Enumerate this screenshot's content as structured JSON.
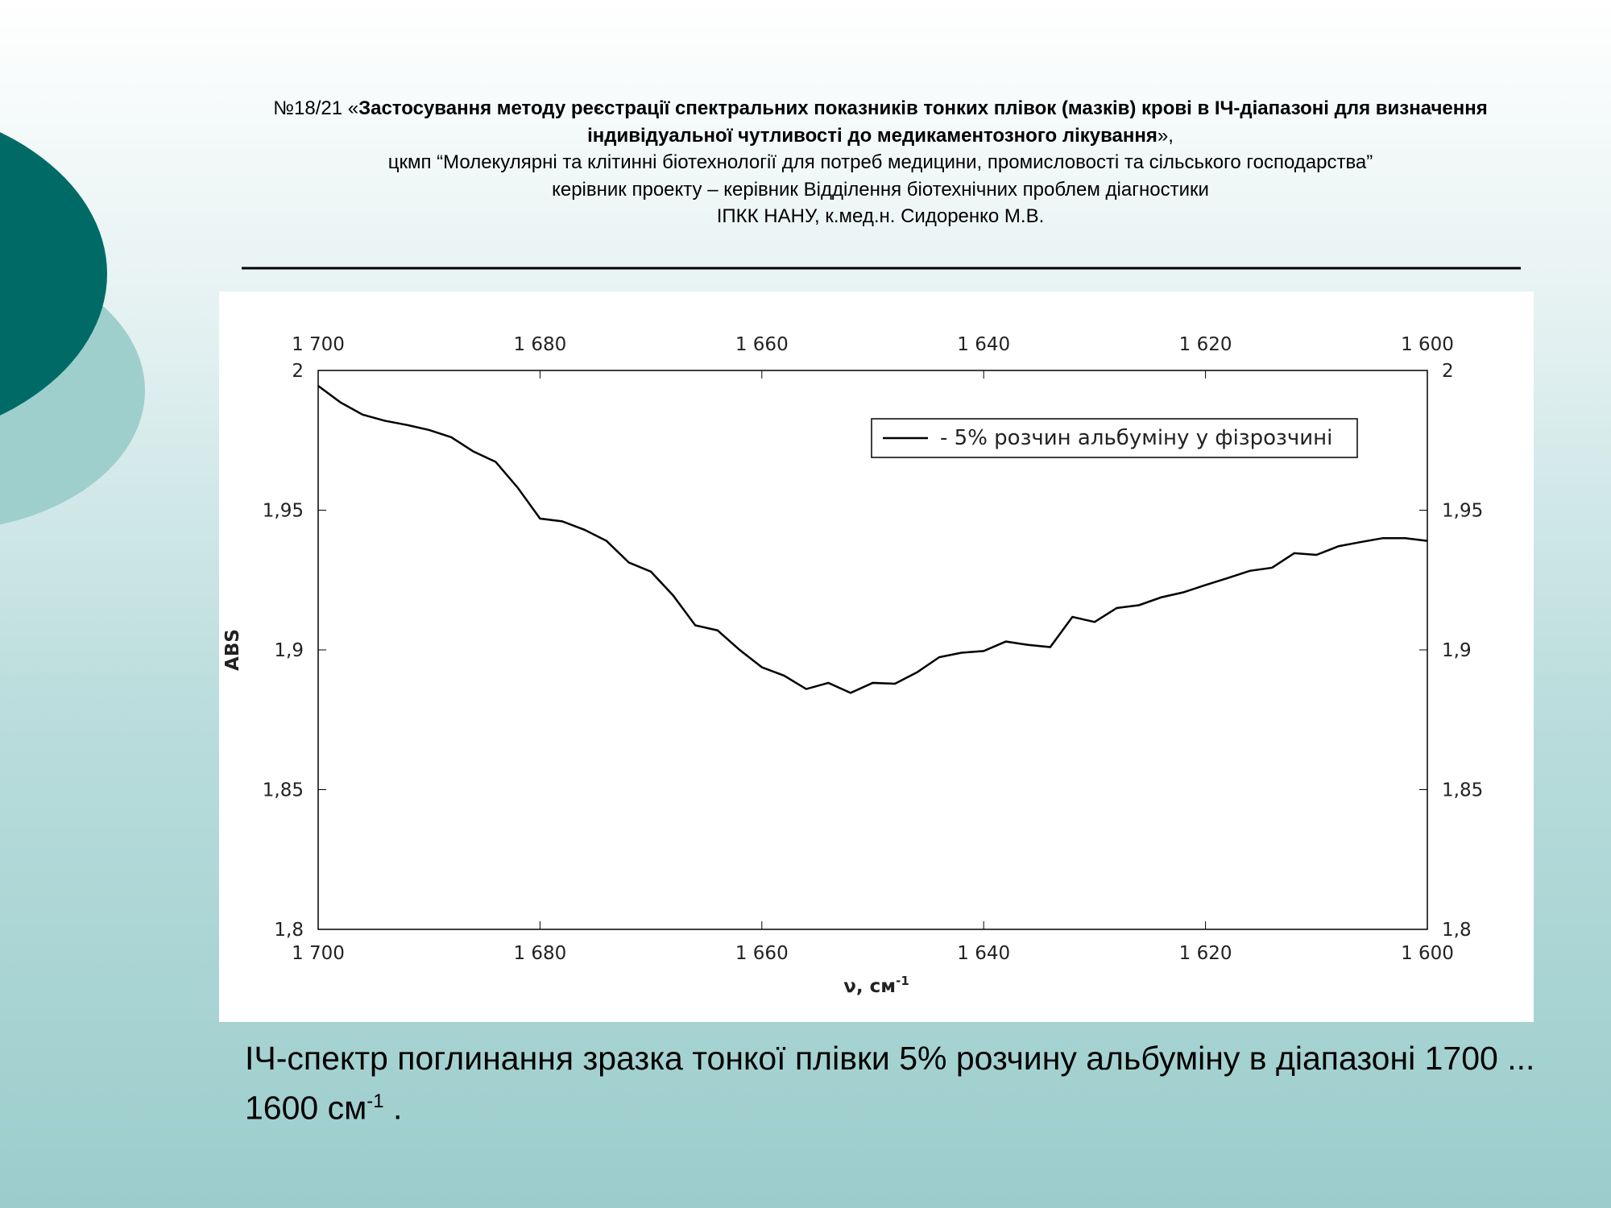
{
  "header": {
    "prefix": "№18/21 «",
    "title": "Застосування методу реєстрації спектральних показників тонких плівок (мазків) крові в ІЧ-діапазоні для визначення індивідуальної чутливості до медикаментозного лікування",
    "suffix": "»,",
    "lines": [
      "цкмп “Молекулярні та клітинні біотехнології для потреб медицини, промисловості та сільського господарства”",
      "керівник проекту – керівник Відділення біотехнічних проблем діагностики",
      "ІПКК НАНУ, к.мед.н. Сидоренко М.В."
    ]
  },
  "chart_data": {
    "type": "line",
    "x_label": "ν, см",
    "x_label_sup": "-1",
    "y_label": "ABS",
    "x": [
      1700,
      1698,
      1696,
      1694,
      1692,
      1690,
      1688,
      1686,
      1684,
      1682,
      1680,
      1678,
      1676,
      1674,
      1672,
      1670,
      1668,
      1666,
      1664,
      1662,
      1660,
      1658,
      1656,
      1654,
      1652,
      1650,
      1648,
      1646,
      1644,
      1642,
      1640,
      1638,
      1636,
      1634,
      1632,
      1630,
      1628,
      1626,
      1624,
      1622,
      1620,
      1618,
      1616,
      1614,
      1612,
      1610,
      1608,
      1606,
      1604,
      1602,
      1600
    ],
    "series": [
      {
        "name": "- 5% розчин альбуміну у фізрозчині",
        "color": "#000000",
        "values": [
          1.9945,
          1.9886,
          1.9842,
          1.982,
          1.9805,
          1.9787,
          1.9761,
          1.971,
          1.9673,
          1.958,
          1.947,
          1.946,
          1.943,
          1.939,
          1.9313,
          1.928,
          1.9195,
          1.9088,
          1.907,
          1.9,
          1.8938,
          1.8908,
          1.886,
          1.8882,
          1.8846,
          1.8882,
          1.8879,
          1.892,
          1.8974,
          1.899,
          1.8996,
          1.903,
          1.9018,
          1.901,
          1.9118,
          1.91,
          1.915,
          1.916,
          1.9188,
          1.9206,
          1.9232,
          1.9257,
          1.9283,
          1.9294,
          1.9346,
          1.934,
          1.9371,
          1.9386,
          1.94,
          1.94,
          1.939
        ]
      }
    ],
    "xlim": [
      1700,
      1600
    ],
    "xticks": [
      {
        "value": 1700,
        "label": "1 700"
      },
      {
        "value": 1680,
        "label": "1 680"
      },
      {
        "value": 1660,
        "label": "1 660"
      },
      {
        "value": 1640,
        "label": "1 640"
      },
      {
        "value": 1620,
        "label": "1 620"
      },
      {
        "value": 1600,
        "label": "1 600"
      }
    ],
    "ylim": [
      1.8,
      2
    ],
    "yticks": [
      {
        "value": 1.8,
        "label": "1,8"
      },
      {
        "value": 1.85,
        "label": "1,85"
      },
      {
        "value": 1.9,
        "label": "1,9"
      },
      {
        "value": 1.95,
        "label": "1,95"
      },
      2
    ],
    "legend": "top-right"
  },
  "caption": {
    "text": "ІЧ-спектр поглинання зразка тонкої плівки 5% розчину альбуміну в діапазоні 1700 ... 1600 см",
    "superscript": "-1",
    "end": " ."
  }
}
